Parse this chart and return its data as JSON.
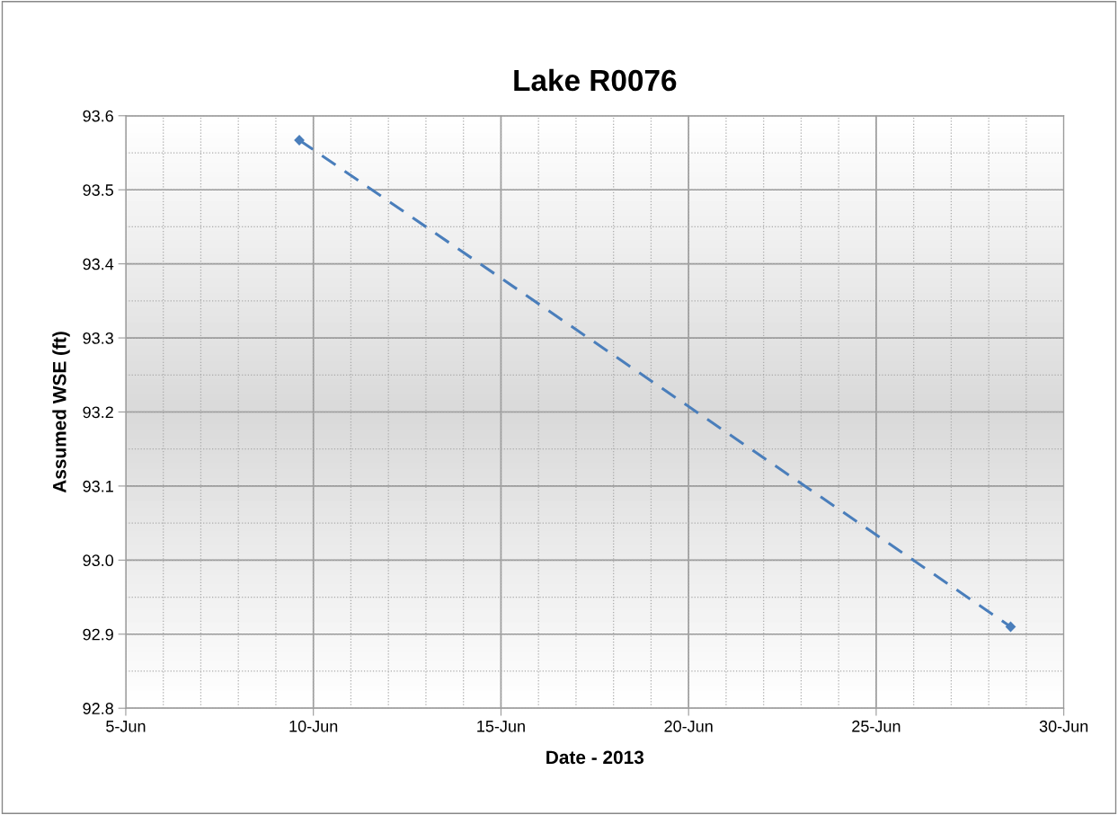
{
  "chart_data": {
    "type": "line",
    "title": "Lake R0076",
    "xlabel": "Date - 2013",
    "ylabel": "Assumed WSE (ft)",
    "x": [
      "2013-06-09T15:00",
      "2013-06-28T14:00"
    ],
    "series": [
      {
        "color": "#4a7ebb",
        "values": [
          93.567,
          92.91
        ]
      }
    ],
    "marker": "diamond",
    "line_style": "dashed",
    "grid": true,
    "legend": false,
    "xlim": [
      "2013-06-05",
      "2013-06-30"
    ],
    "xticks": [
      {
        "value": "2013-06-05",
        "label": "5-Jun"
      },
      {
        "value": "2013-06-10",
        "label": "10-Jun"
      },
      {
        "value": "2013-06-15",
        "label": "15-Jun"
      },
      {
        "value": "2013-06-20",
        "label": "20-Jun"
      },
      {
        "value": "2013-06-25",
        "label": "25-Jun"
      },
      {
        "value": "2013-06-30",
        "label": "30-Jun"
      }
    ],
    "ylim": [
      92.8,
      93.6
    ],
    "yticks": [
      {
        "value": 92.8,
        "label": "92.8"
      },
      {
        "value": 92.9,
        "label": "92.9"
      },
      {
        "value": 93.0,
        "label": "93.0"
      },
      {
        "value": 93.1,
        "label": "93.1"
      },
      {
        "value": 93.2,
        "label": "93.2"
      },
      {
        "value": 93.3,
        "label": "93.3"
      },
      {
        "value": 93.4,
        "label": "93.4"
      },
      {
        "value": 93.5,
        "label": "93.5"
      },
      {
        "value": 93.6,
        "label": "93.6"
      }
    ]
  }
}
